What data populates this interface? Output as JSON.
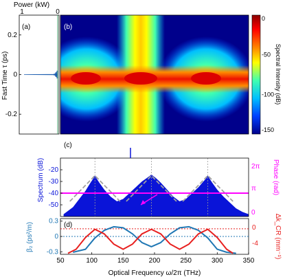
{
  "chart_data": [
    {
      "panel": "a",
      "type": "line",
      "panel_label": "(a)",
      "xlabel": "Power (kW)",
      "ylabel": "Fast Time τ (ps)",
      "x_ticks": [
        "1",
        "0"
      ],
      "y_ticks": [
        "0.2",
        "0",
        "-0.2"
      ],
      "xlim": [
        1,
        0
      ],
      "ylim": [
        -0.3,
        0.3
      ],
      "color": "#1f5fb0",
      "series": [
        {
          "x": [
            0,
            0.03,
            0,
            0.05,
            0,
            0.08,
            0,
            0.12,
            0,
            0.98,
            0,
            0.12,
            0,
            0.08,
            0,
            0.05,
            0,
            0.03,
            0
          ],
          "y": [
            0.02,
            0.016,
            0.013,
            0.01,
            0.008,
            0.006,
            0.004,
            0.002,
            0.001,
            0.0,
            -0.001,
            -0.002,
            -0.004,
            -0.006,
            -0.008,
            -0.01,
            -0.013,
            -0.016,
            -0.02
          ]
        }
      ]
    },
    {
      "panel": "b",
      "type": "heatmap",
      "panel_label": "(b)",
      "xlim": [
        50,
        350
      ],
      "ylim": [
        -0.3,
        0.3
      ],
      "colorbar": {
        "label": "Spectral Intensity (dB)",
        "ticks": [
          "0",
          "-50",
          "-100",
          "-150"
        ],
        "range": [
          -150,
          0
        ]
      }
    },
    {
      "panel": "c",
      "type": "area",
      "panel_label": "(c)",
      "ylabel": "Spectrum (dB)",
      "ylabel_right": "Phase (rad)",
      "y_ticks": [
        "-20",
        "-30",
        "-40",
        "-50"
      ],
      "y_ticks_right": [
        "2π",
        "π",
        "0"
      ],
      "ylim": [
        -60,
        -10
      ],
      "xlim": [
        50,
        350
      ],
      "spectrum_color": "#0a14d8",
      "fit_color": "#a0a0a0",
      "phase_color": "#ff00ff",
      "phase_value": -40,
      "peaks": [
        105,
        195,
        285
      ],
      "spectrum": {
        "x": [
          55,
          70,
          80,
          90,
          98,
          103,
          105,
          107,
          112,
          120,
          130,
          140,
          150,
          160,
          170,
          180,
          188,
          193,
          195,
          197,
          202,
          210,
          220,
          230,
          240,
          250,
          260,
          270,
          278,
          283,
          285,
          287,
          292,
          300,
          310,
          320,
          330,
          340,
          350
        ],
        "y": [
          -58,
          -52,
          -45,
          -38,
          -31,
          -27,
          -25,
          -27,
          -31,
          -37,
          -43,
          -47,
          -45,
          -40,
          -35,
          -30,
          -27,
          -25,
          -24,
          -25,
          -27,
          -31,
          -37,
          -43,
          -47,
          -45,
          -40,
          -35,
          -30,
          -27,
          -25,
          -27,
          -31,
          -37,
          -43,
          -48,
          -53,
          -56,
          -58
        ]
      }
    },
    {
      "panel": "d",
      "type": "line",
      "panel_label": "(d)",
      "xlabel": "Optical Frequency ω/2π (THz)",
      "ylabel": "β₂ (ps²/m)",
      "ylabel_right": "Δk_CR (mm⁻¹)",
      "x_ticks": [
        "50",
        "100",
        "150",
        "200",
        "250",
        "300",
        "350"
      ],
      "y_ticks": [
        "0.3",
        "0",
        "-0.3"
      ],
      "y_ticks_right": [
        "0",
        "-4"
      ],
      "xlim": [
        50,
        350
      ],
      "ylim": [
        -0.35,
        0.35
      ],
      "series": [
        {
          "color": "#1f77b4",
          "x": [
            70,
            90,
            105,
            120,
            135,
            150,
            165,
            180,
            195,
            210,
            225,
            240,
            255,
            270,
            285,
            300,
            315,
            330
          ],
          "y": [
            -0.31,
            -0.25,
            -0.03,
            0.12,
            0.19,
            0.17,
            0.05,
            -0.12,
            -0.2,
            -0.12,
            0.05,
            0.17,
            0.19,
            0.12,
            -0.03,
            -0.25,
            -0.31,
            -0.33
          ]
        },
        {
          "color": "#e8201f",
          "x": [
            62,
            75,
            90,
            105,
            120,
            135,
            150,
            165,
            180,
            195,
            210,
            225,
            240,
            255,
            270,
            285,
            300,
            315,
            325
          ],
          "y": [
            -0.33,
            -0.25,
            -0.02,
            0.14,
            0.05,
            -0.15,
            -0.25,
            -0.15,
            0.05,
            0.14,
            0.05,
            -0.15,
            -0.25,
            -0.15,
            0.05,
            0.14,
            -0.02,
            -0.25,
            -0.33
          ]
        }
      ],
      "reference_lines": [
        {
          "color": "#e8201f",
          "y": 0.15
        },
        {
          "color": "#1f77b4",
          "y": 0.0
        }
      ]
    }
  ]
}
